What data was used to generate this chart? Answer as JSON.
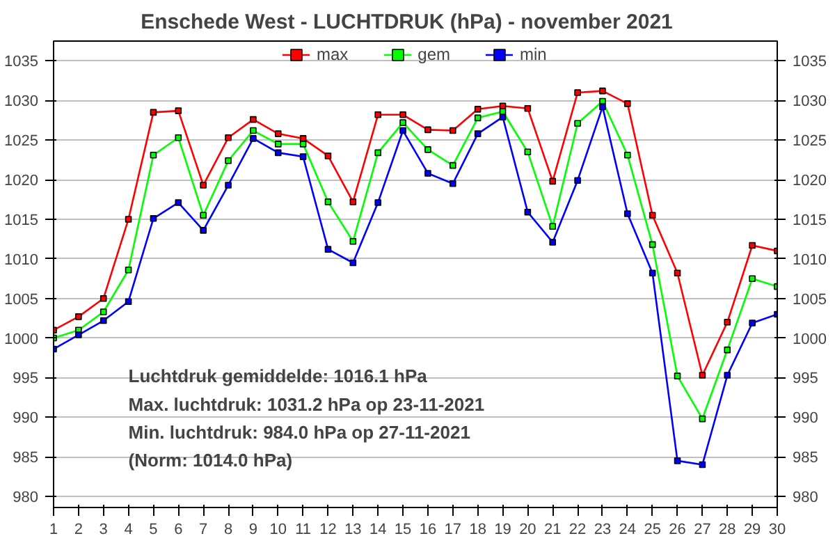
{
  "chart_data": {
    "type": "line",
    "title": "Enschede West  -  LUCHTDRUK (hPa)  - november 2021",
    "x": [
      1,
      2,
      3,
      4,
      5,
      6,
      7,
      8,
      9,
      10,
      11,
      12,
      13,
      14,
      15,
      16,
      17,
      18,
      19,
      20,
      21,
      22,
      23,
      24,
      25,
      26,
      27,
      28,
      29,
      30
    ],
    "series": [
      {
        "name": "max",
        "color": "#ff0000",
        "values": [
          1001,
          1002.7,
          1005,
          1015,
          1028.5,
          1028.7,
          1019.3,
          1025.3,
          1027.6,
          1025.8,
          1025.2,
          1023,
          1017.2,
          1028.2,
          1028.2,
          1026.3,
          1026.2,
          1028.9,
          1029.3,
          1029,
          1019.8,
          1031,
          1031.2,
          1029.6,
          1015.5,
          1008.2,
          995.3,
          1002,
          1011.7,
          1011
        ]
      },
      {
        "name": "gem",
        "color": "#00ff00",
        "values": [
          1000,
          1001,
          1003.3,
          1008.6,
          1023.1,
          1025.3,
          1015.5,
          1022.4,
          1026.2,
          1024.5,
          1024.5,
          1017.2,
          1012.2,
          1023.4,
          1027.2,
          1023.8,
          1021.8,
          1027.8,
          1028.6,
          1023.5,
          1014.1,
          1027.1,
          1029.9,
          1023.1,
          1011.8,
          995.2,
          989.8,
          998.5,
          1007.5,
          1006.5
        ]
      },
      {
        "name": "min",
        "color": "#0000ff",
        "values": [
          998.6,
          1000.4,
          1002.2,
          1004.6,
          1015.1,
          1017.1,
          1013.6,
          1019.3,
          1025.2,
          1023.4,
          1022.9,
          1011.2,
          1009.5,
          1017.1,
          1026.2,
          1020.8,
          1019.5,
          1025.8,
          1027.9,
          1015.9,
          1012.1,
          1019.9,
          1029.2,
          1015.7,
          1008.2,
          984.5,
          984.0,
          995.3,
          1001.9,
          1003
        ]
      }
    ],
    "xlim": [
      1,
      30
    ],
    "xticks": [
      1,
      2,
      3,
      4,
      5,
      6,
      7,
      8,
      9,
      10,
      11,
      12,
      13,
      14,
      15,
      16,
      17,
      18,
      19,
      20,
      21,
      22,
      23,
      24,
      25,
      26,
      27,
      28,
      29,
      30
    ],
    "ylim": [
      978.6,
      1037.5
    ],
    "yticks": [
      980,
      985,
      990,
      995,
      1000,
      1005,
      1010,
      1015,
      1020,
      1025,
      1030,
      1035
    ],
    "y2lim": [
      978.6,
      1037.5
    ],
    "y2ticks": [
      980,
      985,
      990,
      995,
      1000,
      1005,
      1010,
      1015,
      1020,
      1025,
      1030,
      1035
    ],
    "grid": "y",
    "legend": "top",
    "marker": "square",
    "line_style": "solid",
    "annotations": [
      "Luchtdruk gemiddelde: 1016.1 hPa",
      "Max. luchtdruk: 1031.2  hPa op 23-11-2021",
      "Min. luchtdruk: 984.0  hPa op 27-11-2021",
      "(Norm: 1014.0 hPa)"
    ]
  }
}
